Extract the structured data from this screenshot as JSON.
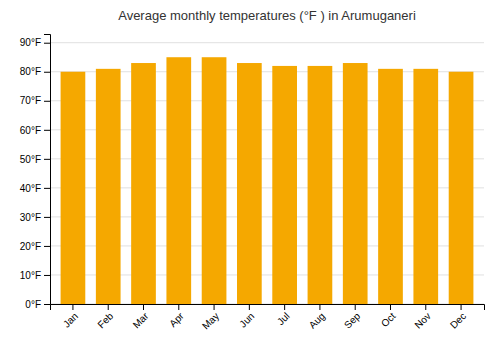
{
  "chart_data": {
    "type": "bar",
    "title": "Average monthly temperatures (°F ) in Arumuganeri",
    "categories": [
      "Jan",
      "Feb",
      "Mar",
      "Apr",
      "May",
      "Jun",
      "Jul",
      "Aug",
      "Sep",
      "Oct",
      "Nov",
      "Dec"
    ],
    "values": [
      80,
      81,
      83,
      85,
      85,
      83,
      82,
      82,
      83,
      81,
      81,
      80
    ],
    "color": "#F5A800",
    "ylim": [
      0,
      93
    ],
    "yticks": [
      {
        "value": 0,
        "label": "0°F"
      },
      {
        "value": 10,
        "label": "10°F"
      },
      {
        "value": 20,
        "label": "20°F"
      },
      {
        "value": 30,
        "label": "30°F"
      },
      {
        "value": 40,
        "label": "40°F"
      },
      {
        "value": 50,
        "label": "50°F"
      },
      {
        "value": 60,
        "label": "60°F"
      },
      {
        "value": 70,
        "label": "70°F"
      },
      {
        "value": 80,
        "label": "80°F"
      },
      {
        "value": 90,
        "label": "90°F"
      }
    ],
    "grid": true
  }
}
